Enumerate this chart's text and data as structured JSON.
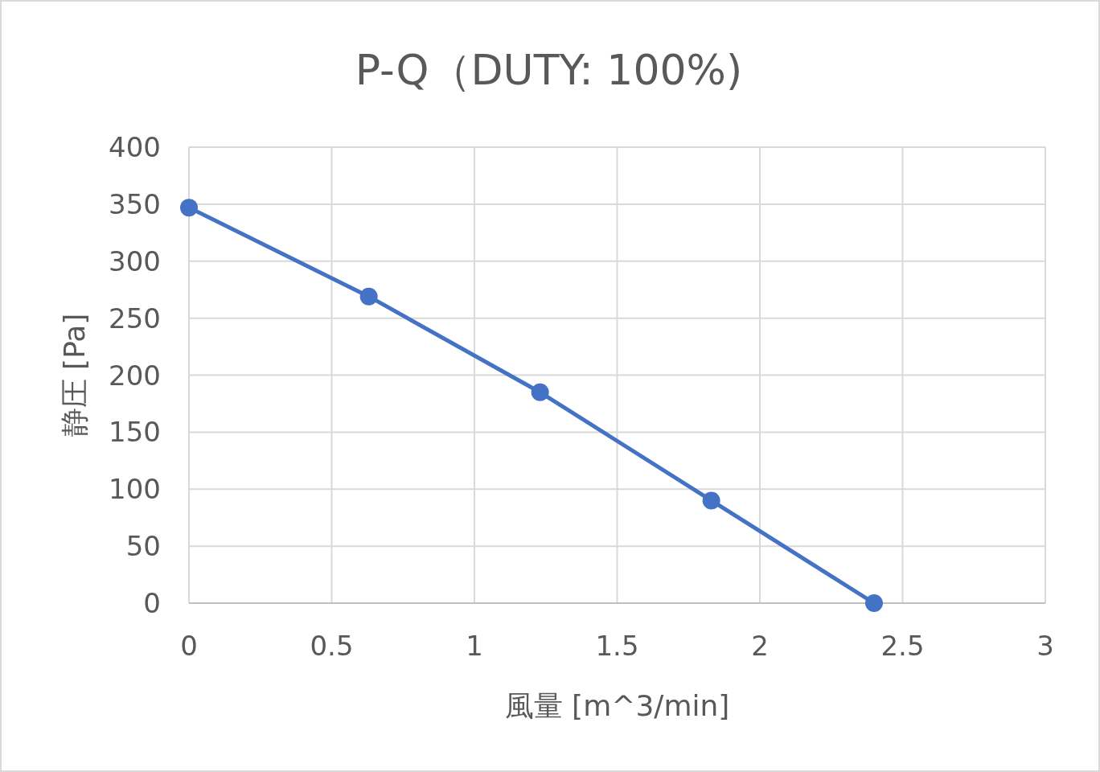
{
  "chart_data": {
    "type": "line",
    "title": "P-Q（DUTY: 100%)",
    "xlabel": "風量 [m^3/min]",
    "ylabel": "静圧 [Pa]",
    "x": [
      0,
      0.63,
      1.23,
      1.83,
      2.4
    ],
    "series": [
      {
        "color": "#4472c4",
        "values": [
          347,
          269,
          185,
          90,
          0
        ]
      }
    ],
    "xlim": [
      0,
      3
    ],
    "xticks": [
      0,
      0.5,
      1,
      1.5,
      2,
      2.5,
      3
    ],
    "ylim": [
      0,
      400
    ],
    "yticks": [
      0,
      50,
      100,
      150,
      200,
      250,
      300,
      350,
      400
    ],
    "grid": true,
    "marker": "circle",
    "line_style": "solid"
  }
}
